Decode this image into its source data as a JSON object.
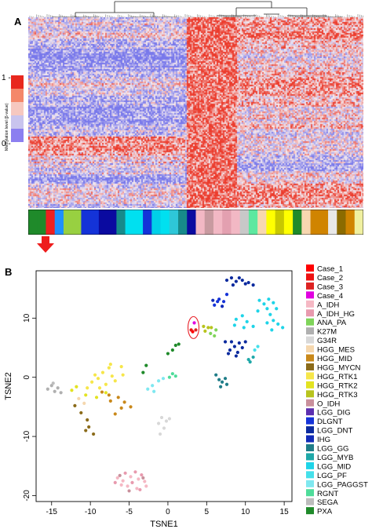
{
  "panel_a": {
    "letter": "A",
    "scale_title": "Methylation level (β-value)",
    "scale_top_label": "1 -",
    "scale_bottom_label": "0 -",
    "scale_colors": [
      "#e8281e",
      "#f4876a",
      "#f6c8c0",
      "#c9c4ee",
      "#8c7ff0"
    ],
    "annotation_colors": [
      "#1f8a2a",
      "#1f8a2a",
      "#ef2020",
      "#1e90ff",
      "#98d041",
      "#98d041",
      "#1433d8",
      "#1433d8",
      "#0a0aa0",
      "#0a0aa0",
      "#178a8a",
      "#00e0f0",
      "#00e0f0",
      "#1433d8",
      "#00d0e8",
      "#00e0f0",
      "#2ec7d8",
      "#178a8a",
      "#0a0aa0",
      "#f2b8c4",
      "#c89aa0",
      "#f2b8c4",
      "#e3a0b0",
      "#f2b8c4",
      "#c8c8c8",
      "#5de8a0",
      "#f7d7b0",
      "#ffff00",
      "#c8c800",
      "#ffff00",
      "#1f8a2a",
      "#f7d7b0",
      "#d08400",
      "#d08400",
      "#e8e8e8",
      "#8b6b00",
      "#d08400",
      "#f0f0a0"
    ],
    "arrow_color": "#ee1c1c"
  },
  "panel_b": {
    "letter": "B",
    "chart_data": {
      "type": "scatter",
      "xlabel": "TSNE1",
      "ylabel": "TSNE2",
      "xlim": [
        -17,
        16
      ],
      "ylim": [
        -21,
        18
      ],
      "xticks": [
        -15,
        -10,
        -5,
        0,
        5,
        10,
        15
      ],
      "yticks": [
        -20,
        -10,
        0,
        10
      ],
      "grid": false,
      "legend_position": "right",
      "series": [
        {
          "name": "Case_1",
          "color": "#ff0000",
          "points": [
            [
              3.2,
              7.7
            ]
          ]
        },
        {
          "name": "Case_2",
          "color": "#ee1111",
          "points": [
            [
              3.0,
              8.0
            ]
          ]
        },
        {
          "name": "Case_3",
          "color": "#dd2222",
          "points": [
            [
              3.6,
              8.0
            ]
          ]
        },
        {
          "name": "Case_4",
          "color": "#e000e0",
          "points": [
            [
              3.4,
              9.2
            ]
          ]
        },
        {
          "name": "A_IDH",
          "color": "#f5b8c4",
          "points": [
            [
              -6.5,
              -17.0
            ],
            [
              -5.8,
              -17.5
            ],
            [
              -4.8,
              -16.8
            ],
            [
              -3.8,
              -17.2
            ],
            [
              -3.0,
              -17.6
            ],
            [
              -5.2,
              -18.4
            ],
            [
              -4.0,
              -18.8
            ],
            [
              -6.0,
              -18.2
            ],
            [
              -2.8,
              -18.4
            ]
          ]
        },
        {
          "name": "A_IDH_HG",
          "color": "#e89aae",
          "points": [
            [
              -5.5,
              -16.2
            ],
            [
              -4.2,
              -16.0
            ],
            [
              -3.4,
              -16.5
            ],
            [
              -6.8,
              -17.8
            ],
            [
              -4.6,
              -17.8
            ],
            [
              -3.6,
              -19.0
            ]
          ]
        },
        {
          "name": "ANA_PA",
          "color": "#7fd45a",
          "points": [
            [
              5.5,
              7.4
            ],
            [
              6.0,
              7.0
            ],
            [
              6.2,
              8.0
            ]
          ]
        },
        {
          "name": "K27M",
          "color": "#b0b0b0",
          "points": [
            [
              -15.5,
              -2.0
            ],
            [
              -15.0,
              -1.4
            ],
            [
              -14.6,
              -2.4
            ],
            [
              -14.2,
              -1.8
            ],
            [
              -13.8,
              -2.6
            ]
          ]
        },
        {
          "name": "G34R",
          "color": "#d8d8d8",
          "points": [
            [
              -0.8,
              -6.8
            ],
            [
              -0.2,
              -7.4
            ],
            [
              -1.2,
              -7.8
            ],
            [
              -0.5,
              -8.6
            ],
            [
              0.2,
              -7.0
            ],
            [
              -1.0,
              -9.6
            ]
          ]
        },
        {
          "name": "HGG_MES",
          "color": "#f5d7ae",
          "points": [
            [
              -11.5,
              -3.6
            ],
            [
              -10.8,
              -4.4
            ]
          ]
        },
        {
          "name": "HGG_MID",
          "color": "#c9881a",
          "points": [
            [
              -8.5,
              -2.5
            ],
            [
              -7.6,
              -3.0
            ],
            [
              -6.4,
              -3.4
            ],
            [
              -5.6,
              -4.2
            ],
            [
              -6.0,
              -5.2
            ],
            [
              -4.8,
              -5.0
            ],
            [
              -7.4,
              -4.0
            ],
            [
              -6.8,
              -6.2
            ]
          ]
        },
        {
          "name": "HGG_MYCN",
          "color": "#8b6b1a",
          "points": [
            [
              -12.0,
              -4.8
            ],
            [
              -11.2,
              -6.0
            ],
            [
              -10.4,
              -7.2
            ],
            [
              -10.2,
              -8.4
            ],
            [
              -9.6,
              -9.6
            ],
            [
              -10.6,
              -9.0
            ]
          ]
        },
        {
          "name": "HGG_RTK1",
          "color": "#f6e64a",
          "points": [
            [
              -9.8,
              -0.8
            ],
            [
              -9.4,
              0.4
            ],
            [
              -8.4,
              0.8
            ],
            [
              -7.6,
              1.6
            ],
            [
              -7.2,
              0.2
            ],
            [
              -8.0,
              -1.2
            ],
            [
              -6.8,
              -0.6
            ],
            [
              -5.8,
              0.4
            ],
            [
              -10.4,
              -1.8
            ],
            [
              -9.0,
              -0.2
            ],
            [
              -6.0,
              1.8
            ],
            [
              -7.4,
              2.2
            ],
            [
              -8.8,
              -1.8
            ]
          ]
        },
        {
          "name": "HGG_RTK2",
          "color": "#e3e321",
          "points": [
            [
              -12.4,
              -2.2
            ],
            [
              -11.8,
              -1.6
            ],
            [
              -10.6,
              -3.0
            ],
            [
              -9.2,
              -3.4
            ],
            [
              -8.0,
              -2.6
            ]
          ]
        },
        {
          "name": "HGG_RTK3",
          "color": "#b8c41e",
          "points": [
            [
              4.8,
              7.8
            ],
            [
              5.2,
              8.4
            ],
            [
              4.6,
              8.6
            ],
            [
              5.6,
              8.4
            ]
          ]
        },
        {
          "name": "O_IDH",
          "color": "#c9909c",
          "points": [
            [
              -6.2,
              -16.6
            ],
            [
              -5.0,
              -19.2
            ],
            [
              -3.2,
              -17.0
            ]
          ]
        },
        {
          "name": "LGG_DIG",
          "color": "#5c2fb0",
          "points": []
        },
        {
          "name": "DLGNT",
          "color": "#1533d8",
          "points": [
            [
              6.0,
              12.2
            ],
            [
              6.6,
              13.2
            ],
            [
              7.2,
              12.8
            ],
            [
              7.6,
              14.0
            ],
            [
              6.4,
              12.8
            ]
          ]
        },
        {
          "name": "LGG_DNT",
          "color": "#0b2a9e",
          "points": [
            [
              8.2,
              16.8
            ],
            [
              8.8,
              16.2
            ],
            [
              9.6,
              16.4
            ],
            [
              10.4,
              16.0
            ],
            [
              11.0,
              15.6
            ],
            [
              9.2,
              16.8
            ],
            [
              10.0,
              15.8
            ],
            [
              7.6,
              16.4
            ],
            [
              8.4,
              15.6
            ],
            [
              8.6,
              5.2
            ],
            [
              9.2,
              5.8
            ],
            [
              9.6,
              5.0
            ],
            [
              8.2,
              6.0
            ],
            [
              8.0,
              4.6
            ],
            [
              9.0,
              4.2
            ],
            [
              10.0,
              6.0
            ],
            [
              7.4,
              6.0
            ],
            [
              7.8,
              4.0
            ],
            [
              8.8,
              3.6
            ]
          ]
        },
        {
          "name": "IHG",
          "color": "#122bb8",
          "points": [
            [
              7.0,
              12.0
            ],
            [
              5.8,
              13.0
            ]
          ]
        },
        {
          "name": "LGG_GG",
          "color": "#1f7d88",
          "points": [
            [
              6.6,
              -0.4
            ],
            [
              7.0,
              -0.8
            ],
            [
              7.6,
              -1.2
            ],
            [
              6.8,
              -1.6
            ],
            [
              7.4,
              -0.2
            ],
            [
              6.2,
              0.4
            ]
          ]
        },
        {
          "name": "LGG_MYB",
          "color": "#1fa8a8",
          "points": [
            [
              10.4,
              3.0
            ],
            [
              11.0,
              3.4
            ],
            [
              10.6,
              2.6
            ]
          ]
        },
        {
          "name": "LGG_MID",
          "color": "#1ed4e8",
          "points": [
            [
              11.8,
              13.0
            ],
            [
              12.4,
              12.4
            ],
            [
              13.0,
              13.2
            ],
            [
              13.6,
              12.6
            ],
            [
              12.8,
              11.6
            ],
            [
              11.6,
              11.2
            ],
            [
              14.0,
              11.6
            ],
            [
              13.2,
              10.6
            ],
            [
              8.8,
              9.8
            ],
            [
              9.6,
              10.4
            ],
            [
              10.2,
              9.4
            ],
            [
              9.8,
              8.4
            ],
            [
              11.0,
              8.6
            ],
            [
              8.6,
              8.8
            ],
            [
              12.8,
              9.2
            ],
            [
              13.6,
              9.6
            ],
            [
              14.2,
              9.0
            ],
            [
              14.8,
              8.4
            ],
            [
              13.4,
              8.0
            ]
          ]
        },
        {
          "name": "LGG_PF",
          "color": "#45e0ea",
          "points": [
            [
              11.2,
              4.6
            ],
            [
              11.6,
              5.2
            ]
          ]
        },
        {
          "name": "LGG_PAGGST",
          "color": "#7fe8f0",
          "points": [
            [
              -2.6,
              -2.0
            ],
            [
              -2.0,
              -1.4
            ],
            [
              -1.2,
              -0.6
            ],
            [
              -0.6,
              -0.2
            ],
            [
              -1.8,
              -2.4
            ]
          ]
        },
        {
          "name": "RGNT",
          "color": "#4fdc9a",
          "points": [
            [
              0.2,
              0.0
            ],
            [
              1.0,
              0.2
            ],
            [
              0.6,
              0.6
            ]
          ]
        },
        {
          "name": "SEGA",
          "color": "#bdbdbd",
          "points": [
            [
              -14.8,
              -1.0
            ]
          ]
        },
        {
          "name": "PXA",
          "color": "#1f8a2a",
          "points": [
            [
              0.0,
              4.0
            ],
            [
              0.6,
              4.6
            ],
            [
              1.0,
              5.4
            ],
            [
              1.4,
              5.6
            ],
            [
              -2.8,
              2.0
            ],
            [
              -3.2,
              0.8
            ]
          ]
        }
      ]
    }
  }
}
